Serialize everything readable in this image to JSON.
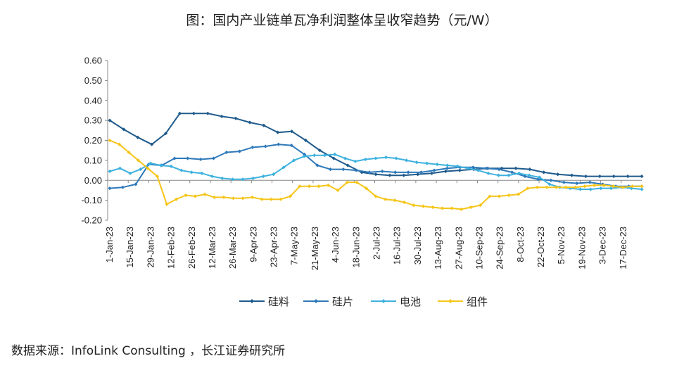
{
  "chart_data": {
    "type": "line",
    "title": "图：国内产业链单瓦净利润整体呈收窄趋势（元/W）",
    "ylim": [
      -0.2,
      0.6
    ],
    "yticks": [
      "0.60",
      "0.50",
      "0.40",
      "0.30",
      "0.20",
      "0.10",
      "0.00",
      "-0.10",
      "-0.20"
    ],
    "grid": false,
    "legend_position": "bottom",
    "x_tick_labels": [
      "1-Jan-23",
      "15-Jan-23",
      "29-Jan-23",
      "12-Feb-23",
      "26-Feb-23",
      "12-Mar-23",
      "26-Mar-23",
      "9-Apr-23",
      "23-Apr-23",
      "7-May-23",
      "21-May-23",
      "4-Jun-23",
      "18-Jun-23",
      "2-Jul-23",
      "16-Jul-23",
      "30-Jul-23",
      "13-Aug-23",
      "27-Aug-23",
      "10-Sep-23",
      "24-Sep-23",
      "8-Oct-23",
      "22-Oct-23",
      "5-Nov-23",
      "19-Nov-23",
      "3-Dec-23",
      "17-Dec-23"
    ],
    "series": [
      {
        "name": "硅料",
        "color": "#1f5a8c",
        "values": [
          0.3,
          0.255,
          0.215,
          0.18,
          0.235,
          0.335,
          0.335,
          0.335,
          0.32,
          0.31,
          0.29,
          0.275,
          0.24,
          0.245,
          0.2,
          0.15,
          0.11,
          0.075,
          0.04,
          0.03,
          0.025,
          0.025,
          0.03,
          0.035,
          0.045,
          0.05,
          0.055,
          0.06,
          0.06,
          0.06,
          0.055,
          0.04,
          0.03,
          0.025,
          0.02,
          0.02,
          0.02,
          0.02,
          0.02
        ]
      },
      {
        "name": "硅片",
        "color": "#2e79b9",
        "values": [
          -0.04,
          -0.035,
          -0.02,
          0.08,
          0.075,
          0.11,
          0.11,
          0.105,
          0.11,
          0.14,
          0.145,
          0.165,
          0.17,
          0.18,
          0.175,
          0.13,
          0.075,
          0.055,
          0.055,
          0.05,
          0.04,
          0.045,
          0.04,
          0.04,
          0.04,
          0.05,
          0.06,
          0.065,
          0.065,
          0.06,
          0.055,
          0.04,
          0.02,
          0.005,
          0.0,
          -0.01,
          -0.015,
          -0.01,
          -0.02,
          -0.03,
          -0.03,
          -0.03
        ]
      },
      {
        "name": "电池",
        "color": "#3db1de",
        "values": [
          0.045,
          0.06,
          0.035,
          0.055,
          0.085,
          0.075,
          0.07,
          0.05,
          0.04,
          0.035,
          0.02,
          0.01,
          0.005,
          0.005,
          0.01,
          0.02,
          0.03,
          0.065,
          0.1,
          0.12,
          0.125,
          0.125,
          0.13,
          0.11,
          0.095,
          0.105,
          0.11,
          0.115,
          0.11,
          0.1,
          0.09,
          0.085,
          0.08,
          0.075,
          0.07,
          0.06,
          0.05,
          0.035,
          0.025,
          0.025,
          0.035,
          0.025,
          0.015,
          -0.02,
          -0.035,
          -0.04,
          -0.045,
          -0.045,
          -0.04,
          -0.04,
          -0.035,
          -0.04,
          -0.045
        ]
      },
      {
        "name": "组件",
        "color": "#f5c518",
        "values": [
          0.2,
          0.18,
          0.14,
          0.1,
          0.06,
          0.02,
          -0.12,
          -0.095,
          -0.075,
          -0.08,
          -0.07,
          -0.085,
          -0.085,
          -0.09,
          -0.09,
          -0.085,
          -0.095,
          -0.095,
          -0.095,
          -0.08,
          -0.03,
          -0.03,
          -0.03,
          -0.025,
          -0.05,
          -0.01,
          -0.01,
          -0.04,
          -0.08,
          -0.095,
          -0.1,
          -0.11,
          -0.125,
          -0.13,
          -0.135,
          -0.14,
          -0.14,
          -0.145,
          -0.135,
          -0.125,
          -0.08,
          -0.08,
          -0.075,
          -0.07,
          -0.04,
          -0.035,
          -0.035,
          -0.035,
          -0.035,
          -0.035,
          -0.03,
          -0.025,
          -0.025,
          -0.03,
          -0.035,
          -0.03,
          -0.03
        ]
      }
    ]
  },
  "source_note": "数据来源：InfoLink Consulting ，长江证券研究所"
}
